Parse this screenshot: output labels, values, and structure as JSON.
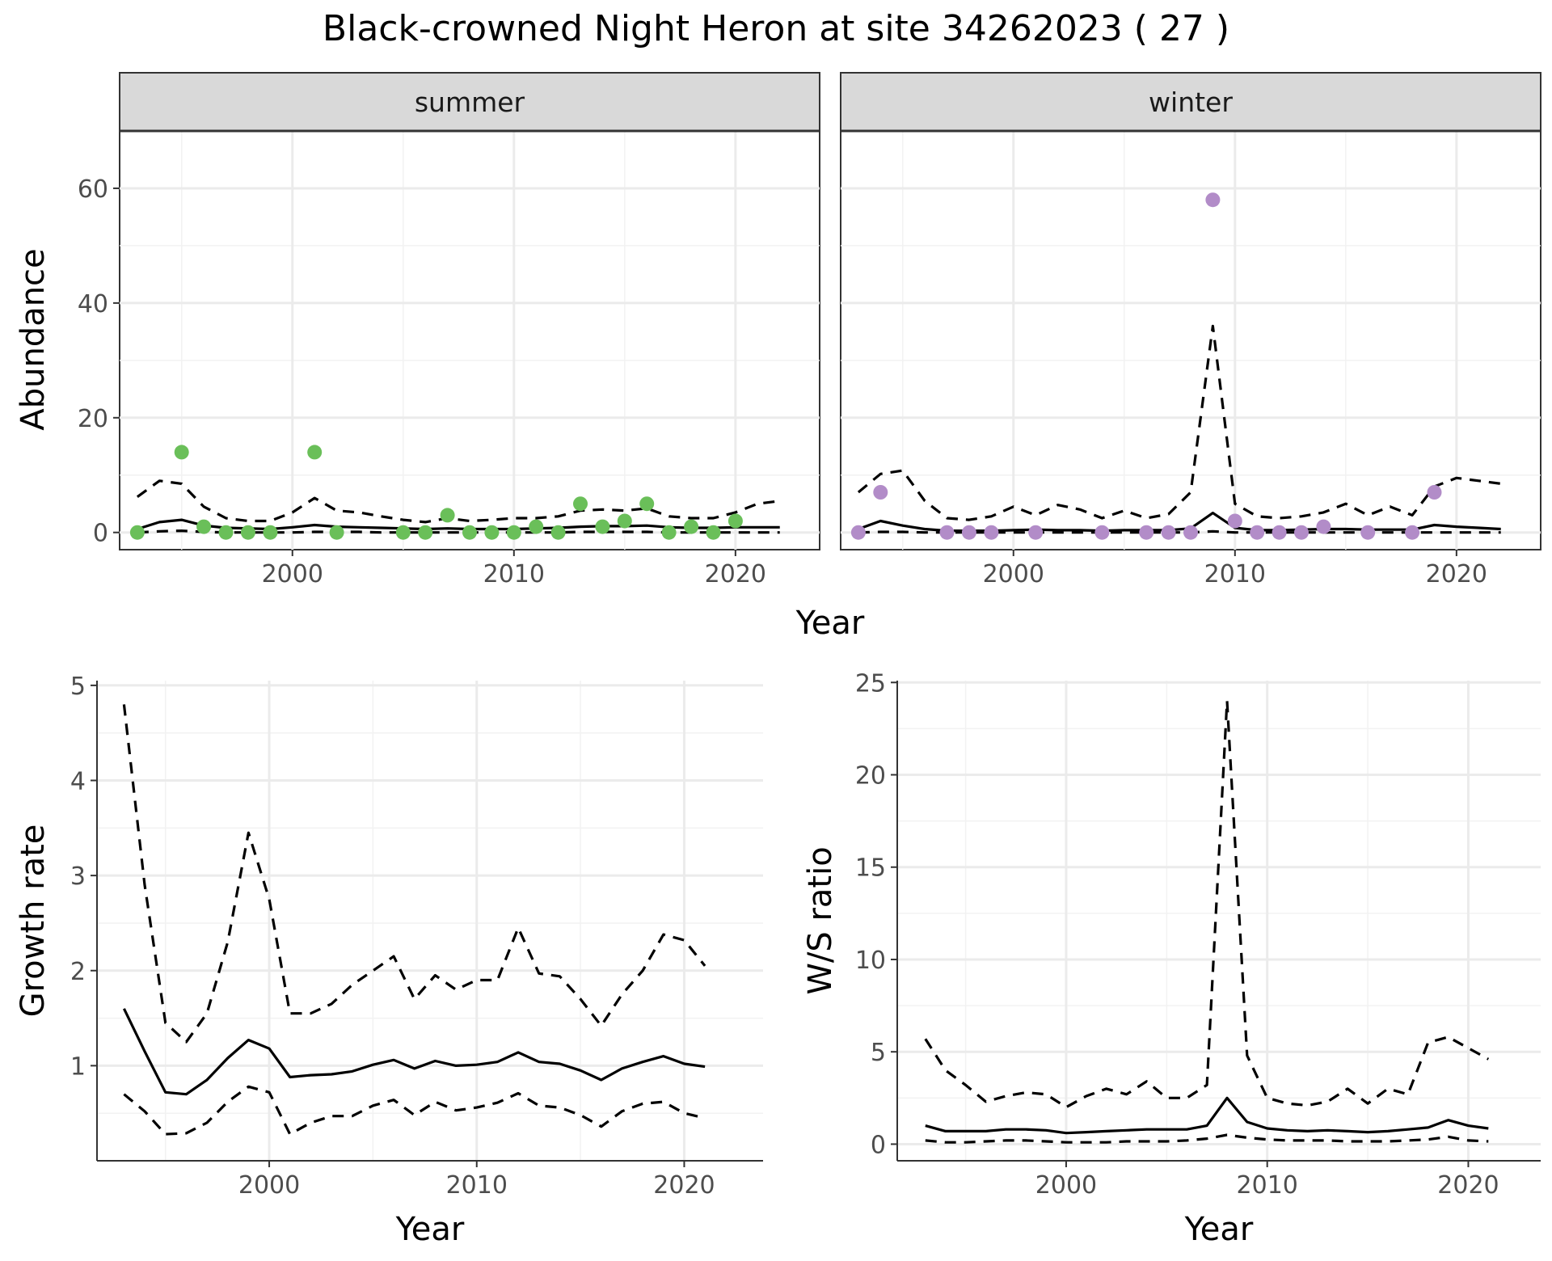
{
  "figure": {
    "title": "Black-crowned Night Heron at site 34262023 ( 27 )"
  },
  "chart_data": [
    {
      "type": "line",
      "panel": "top-faceted",
      "title": "Black-crowned Night Heron at site 34262023 ( 27 )",
      "xlabel": "Year",
      "ylabel": "Abundance",
      "xlim": [
        1992.2,
        2023.8
      ],
      "ylim": [
        -3,
        70
      ],
      "x_ticks": [
        2000,
        2010,
        2020
      ],
      "y_ticks": [
        0,
        20,
        40,
        60
      ],
      "grid": true,
      "facets": [
        {
          "label": "summer",
          "point_color": "#6abf59",
          "x": [
            1993,
            1994,
            1995,
            1996,
            1997,
            1998,
            1999,
            2000,
            2001,
            2002,
            2003,
            2004,
            2005,
            2006,
            2007,
            2008,
            2009,
            2010,
            2011,
            2012,
            2013,
            2014,
            2015,
            2016,
            2017,
            2018,
            2019,
            2020,
            2021,
            2022
          ],
          "fit": [
            0.6,
            1.8,
            2.2,
            1.2,
            0.8,
            0.7,
            0.6,
            0.9,
            1.3,
            1.0,
            0.9,
            0.8,
            0.7,
            0.6,
            0.7,
            0.6,
            0.6,
            0.6,
            0.7,
            0.8,
            1.0,
            1.1,
            1.1,
            1.2,
            0.9,
            0.8,
            0.8,
            0.9,
            0.9,
            0.9
          ],
          "lower": [
            0.0,
            0.2,
            0.3,
            0.1,
            0.0,
            0.0,
            0.0,
            0.0,
            0.1,
            0.1,
            0.1,
            0.0,
            0.0,
            0.0,
            0.0,
            0.0,
            0.0,
            0.0,
            0.0,
            0.0,
            0.1,
            0.1,
            0.1,
            0.1,
            0.0,
            0.0,
            0.0,
            0.0,
            0.0,
            0.0
          ],
          "upper": [
            6.2,
            9.0,
            8.5,
            4.5,
            2.5,
            2.0,
            2.0,
            3.5,
            6.0,
            3.8,
            3.5,
            2.8,
            2.2,
            1.8,
            2.5,
            2.0,
            2.2,
            2.5,
            2.5,
            2.8,
            3.8,
            4.0,
            3.8,
            4.2,
            2.8,
            2.5,
            2.5,
            3.5,
            5.0,
            5.5
          ],
          "obs_x": [
            1993,
            1995,
            1996,
            1997,
            1998,
            1999,
            2001,
            2002,
            2005,
            2006,
            2007,
            2008,
            2009,
            2010,
            2011,
            2012,
            2013,
            2014,
            2015,
            2016,
            2017,
            2018,
            2019,
            2020
          ],
          "obs_y": [
            0,
            14,
            1,
            0,
            0,
            0,
            14,
            0,
            0,
            0,
            3,
            0,
            0,
            0,
            1,
            0,
            5,
            1,
            2,
            5,
            0,
            1,
            0,
            2
          ]
        },
        {
          "label": "winter",
          "point_color": "#b28cc8",
          "x": [
            1993,
            1994,
            1995,
            1996,
            1997,
            1998,
            1999,
            2000,
            2001,
            2002,
            2003,
            2004,
            2005,
            2006,
            2007,
            2008,
            2009,
            2010,
            2011,
            2012,
            2013,
            2014,
            2015,
            2016,
            2017,
            2018,
            2019,
            2020,
            2021,
            2022
          ],
          "fit": [
            0.6,
            2.0,
            1.2,
            0.6,
            0.3,
            0.3,
            0.3,
            0.4,
            0.5,
            0.4,
            0.4,
            0.3,
            0.4,
            0.4,
            0.4,
            0.7,
            3.4,
            0.8,
            0.4,
            0.4,
            0.5,
            0.6,
            0.6,
            0.5,
            0.5,
            0.5,
            1.3,
            1.0,
            0.8,
            0.6
          ],
          "lower": [
            0.0,
            0.1,
            0.1,
            0.0,
            0.0,
            0.0,
            0.0,
            0.0,
            0.0,
            0.0,
            0.0,
            0.0,
            0.0,
            0.0,
            0.0,
            0.0,
            0.2,
            0.0,
            0.0,
            0.0,
            0.0,
            0.0,
            0.0,
            0.0,
            0.0,
            0.0,
            0.0,
            0.0,
            0.0,
            0.0
          ],
          "upper": [
            7.0,
            10.2,
            10.8,
            5.5,
            2.5,
            2.2,
            2.8,
            4.5,
            3.0,
            4.8,
            4.0,
            2.5,
            3.8,
            2.5,
            3.2,
            7.0,
            36.0,
            5.0,
            2.8,
            2.5,
            2.8,
            3.5,
            5.0,
            3.0,
            4.5,
            3.0,
            8.0,
            9.5,
            9.0,
            8.5
          ],
          "obs_x": [
            1993,
            1994,
            1997,
            1998,
            1999,
            2001,
            2004,
            2006,
            2007,
            2008,
            2009,
            2010,
            2011,
            2012,
            2013,
            2014,
            2016,
            2018,
            2019
          ],
          "obs_y": [
            0,
            7,
            0,
            0,
            0,
            0,
            0,
            0,
            0,
            0,
            58,
            2,
            0,
            0,
            0,
            1,
            0,
            0,
            7
          ]
        }
      ]
    },
    {
      "type": "line",
      "panel": "bottom-left",
      "title": "",
      "xlabel": "Year",
      "ylabel": "Growth rate",
      "xlim": [
        1991.7,
        2023.8
      ],
      "ylim": [
        0,
        5.05
      ],
      "x_ticks": [
        2000,
        2010,
        2020
      ],
      "y_ticks": [
        1,
        2,
        3,
        4,
        5
      ],
      "grid": true,
      "x": [
        1993,
        1994,
        1995,
        1996,
        1997,
        1998,
        1999,
        2000,
        2001,
        2002,
        2003,
        2004,
        2005,
        2006,
        2007,
        2008,
        2009,
        2010,
        2011,
        2012,
        2013,
        2014,
        2015,
        2016,
        2017,
        2018,
        2019,
        2020,
        2021
      ],
      "series": [
        {
          "role": "fit",
          "style": "solid",
          "values": [
            1.6,
            1.15,
            0.72,
            0.7,
            0.85,
            1.08,
            1.27,
            1.18,
            0.88,
            0.9,
            0.91,
            0.94,
            1.01,
            1.06,
            0.97,
            1.05,
            1.0,
            1.01,
            1.04,
            1.14,
            1.04,
            1.02,
            0.95,
            0.85,
            0.97,
            1.04,
            1.1,
            1.02,
            0.99
          ]
        },
        {
          "role": "lower",
          "style": "dashed",
          "values": [
            0.7,
            0.52,
            0.28,
            0.29,
            0.4,
            0.62,
            0.78,
            0.72,
            0.28,
            0.4,
            0.47,
            0.47,
            0.58,
            0.64,
            0.48,
            0.62,
            0.53,
            0.56,
            0.61,
            0.71,
            0.58,
            0.56,
            0.48,
            0.36,
            0.52,
            0.6,
            0.62,
            0.5,
            0.45
          ]
        },
        {
          "role": "upper",
          "style": "dashed",
          "values": [
            4.8,
            2.9,
            1.45,
            1.25,
            1.55,
            2.3,
            3.45,
            2.75,
            1.55,
            1.55,
            1.65,
            1.85,
            2.0,
            2.15,
            1.7,
            1.95,
            1.8,
            1.9,
            1.9,
            2.45,
            1.97,
            1.94,
            1.7,
            1.42,
            1.75,
            2.0,
            2.38,
            2.32,
            2.05
          ]
        }
      ]
    },
    {
      "type": "line",
      "panel": "bottom-right",
      "title": "",
      "xlabel": "Year",
      "ylabel": "W/S ratio",
      "xlim": [
        1991.6,
        2023.6
      ],
      "ylim": [
        -0.9,
        25.1
      ],
      "x_ticks": [
        2000,
        2010,
        2020
      ],
      "y_ticks": [
        0,
        5,
        10,
        15,
        20,
        25
      ],
      "grid": true,
      "x": [
        1993,
        1994,
        1995,
        1996,
        1997,
        1998,
        1999,
        2000,
        2001,
        2002,
        2003,
        2004,
        2005,
        2006,
        2007,
        2008,
        2009,
        2010,
        2011,
        2012,
        2013,
        2014,
        2015,
        2016,
        2017,
        2018,
        2019,
        2020,
        2021
      ],
      "series": [
        {
          "role": "fit",
          "style": "solid",
          "values": [
            1.0,
            0.7,
            0.7,
            0.7,
            0.8,
            0.8,
            0.75,
            0.6,
            0.65,
            0.7,
            0.75,
            0.8,
            0.8,
            0.8,
            1.0,
            2.5,
            1.2,
            0.85,
            0.75,
            0.7,
            0.75,
            0.7,
            0.65,
            0.7,
            0.8,
            0.9,
            1.3,
            1.0,
            0.85
          ]
        },
        {
          "role": "lower",
          "style": "dashed",
          "values": [
            0.2,
            0.1,
            0.1,
            0.15,
            0.2,
            0.2,
            0.15,
            0.1,
            0.1,
            0.1,
            0.15,
            0.15,
            0.15,
            0.2,
            0.3,
            0.5,
            0.35,
            0.25,
            0.2,
            0.2,
            0.2,
            0.15,
            0.15,
            0.15,
            0.2,
            0.25,
            0.4,
            0.2,
            0.15
          ]
        },
        {
          "role": "upper",
          "style": "dashed",
          "values": [
            5.7,
            4.0,
            3.2,
            2.3,
            2.6,
            2.8,
            2.7,
            2.0,
            2.6,
            3.0,
            2.7,
            3.4,
            2.5,
            2.5,
            3.2,
            24.0,
            4.8,
            2.5,
            2.2,
            2.1,
            2.3,
            3.0,
            2.2,
            3.0,
            2.7,
            5.5,
            5.8,
            5.2,
            4.6
          ]
        }
      ]
    }
  ]
}
